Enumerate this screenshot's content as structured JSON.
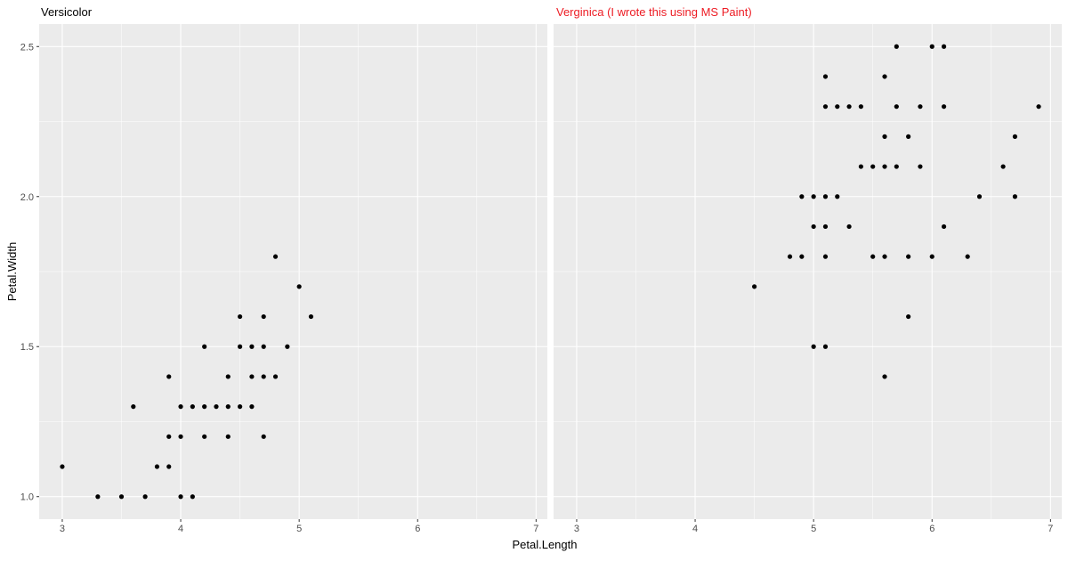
{
  "x_label": "Petal.Length",
  "y_label": "Petal.Width",
  "chart_data": [
    {
      "type": "scatter",
      "title": "Versicolor",
      "title_color": "#000000",
      "color": "#000000",
      "x": [
        3.0,
        3.3,
        3.5,
        3.6,
        3.7,
        3.8,
        3.9,
        3.9,
        3.9,
        4.0,
        4.0,
        4.0,
        4.1,
        4.1,
        4.2,
        4.2,
        4.2,
        4.3,
        4.4,
        4.4,
        4.4,
        4.5,
        4.5,
        4.5,
        4.6,
        4.6,
        4.6,
        4.7,
        4.7,
        4.7,
        4.7,
        4.8,
        4.8,
        4.9,
        5.0,
        5.1
      ],
      "y": [
        1.1,
        1.0,
        1.0,
        1.3,
        1.0,
        1.1,
        1.4,
        1.2,
        1.1,
        1.3,
        1.2,
        1.0,
        1.3,
        1.0,
        1.5,
        1.3,
        1.2,
        1.3,
        1.4,
        1.3,
        1.2,
        1.6,
        1.5,
        1.3,
        1.5,
        1.4,
        1.3,
        1.6,
        1.5,
        1.4,
        1.2,
        1.8,
        1.4,
        1.5,
        1.7,
        1.6
      ],
      "xlim": [
        2.805,
        7.095
      ],
      "ylim": [
        0.925,
        2.575
      ],
      "xticks": [
        3,
        4,
        5,
        6,
        7
      ],
      "yticks": [
        {
          "value": 1,
          "label": "1.0"
        },
        {
          "value": 1.5,
          "label": "1.5"
        },
        {
          "value": 2,
          "label": "2.0"
        },
        {
          "value": 2.5,
          "label": "2.5"
        }
      ],
      "grid": true
    },
    {
      "type": "scatter",
      "title": "Verginica (I wrote this using MS Paint)",
      "title_color": "#ed1c24",
      "color": "#000000",
      "x": [
        4.5,
        4.8,
        4.9,
        4.9,
        5.0,
        5.0,
        5.0,
        5.1,
        5.1,
        5.1,
        5.1,
        5.1,
        5.1,
        5.2,
        5.2,
        5.3,
        5.3,
        5.4,
        5.4,
        5.5,
        5.5,
        5.6,
        5.6,
        5.6,
        5.6,
        5.6,
        5.7,
        5.7,
        5.7,
        5.8,
        5.8,
        5.8,
        5.9,
        5.9,
        6.0,
        6.0,
        6.1,
        6.1,
        6.1,
        6.3,
        6.4,
        6.6,
        6.7,
        6.7,
        6.9
      ],
      "y": [
        1.7,
        1.8,
        2.0,
        1.8,
        2.0,
        1.9,
        1.5,
        2.4,
        2.3,
        2.0,
        1.9,
        1.8,
        1.5,
        2.3,
        2.0,
        2.3,
        1.9,
        2.3,
        2.1,
        2.1,
        1.8,
        2.4,
        2.2,
        2.1,
        1.8,
        1.4,
        2.5,
        2.3,
        2.1,
        2.2,
        1.8,
        1.6,
        2.3,
        2.1,
        2.5,
        1.8,
        2.5,
        2.3,
        1.9,
        1.8,
        2.0,
        2.1,
        2.2,
        2.0,
        2.3
      ],
      "xlim": [
        2.805,
        7.095
      ],
      "ylim": [
        0.925,
        2.575
      ],
      "xticks": [
        3,
        4,
        5,
        6,
        7
      ],
      "yticks": [
        {
          "value": 1,
          "label": "1.0"
        },
        {
          "value": 1.5,
          "label": "1.5"
        },
        {
          "value": 2,
          "label": "2.0"
        },
        {
          "value": 2.5,
          "label": "2.5"
        }
      ],
      "grid": true
    }
  ]
}
